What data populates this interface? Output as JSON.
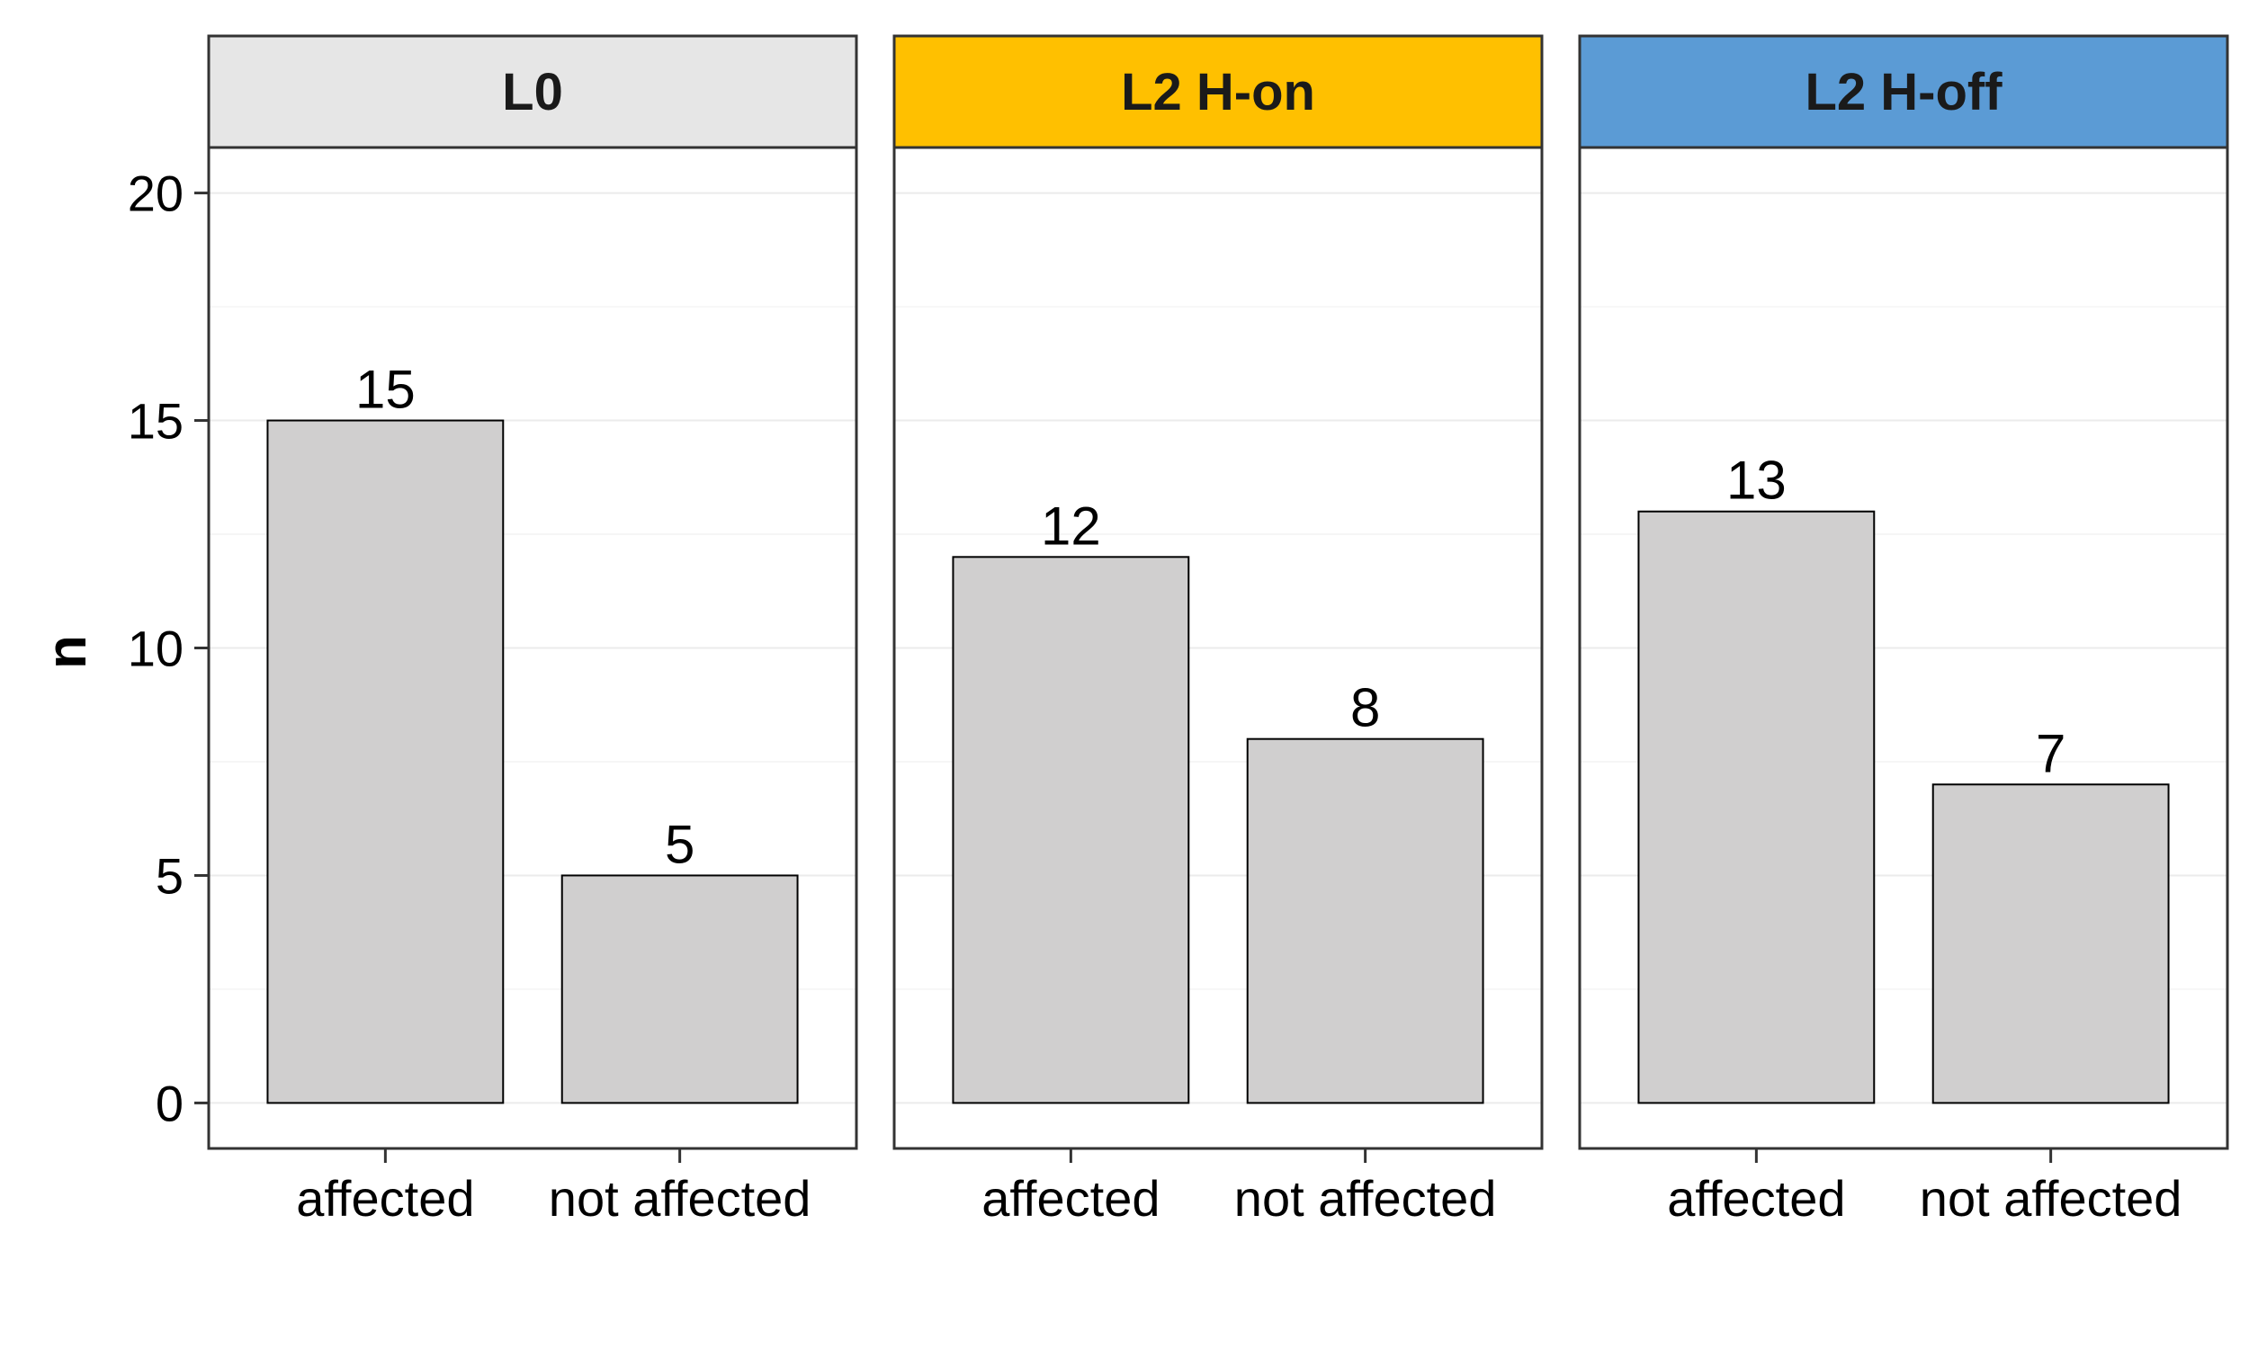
{
  "chart_data": {
    "type": "bar",
    "facets": [
      {
        "label": "L0",
        "strip_color": "#e6e6e6"
      },
      {
        "label": "L2 H-on",
        "strip_color": "#ffc000"
      },
      {
        "label": "L2 H-off",
        "strip_color": "#5b9bd5"
      }
    ],
    "categories": [
      "affected",
      "not affected"
    ],
    "values": [
      [
        15,
        5
      ],
      [
        12,
        8
      ],
      [
        13,
        7
      ]
    ],
    "ylabel": "n",
    "ylim": [
      -1,
      21
    ],
    "yticks": [
      0,
      5,
      10,
      15,
      20
    ],
    "grid": true,
    "bar_color": "#d0cfcf",
    "legend": "none"
  }
}
